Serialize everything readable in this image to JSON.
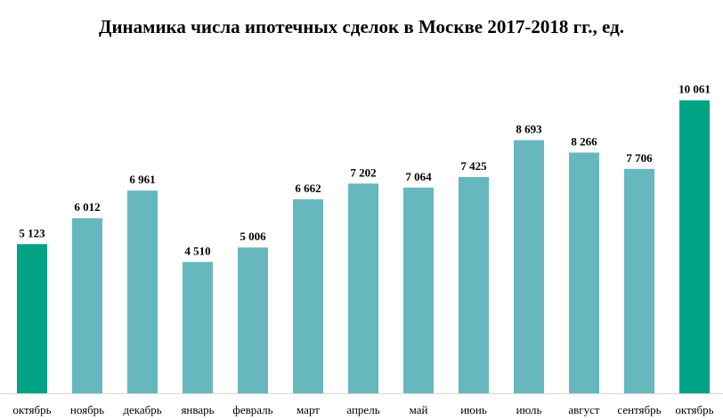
{
  "chart_data": {
    "type": "bar",
    "title": "Динамика числа ипотечных сделок в Москве 2017-2018 гг., ед.",
    "categories": [
      "октябрь",
      "ноябрь",
      "декабрь",
      "январь",
      "февраль",
      "март",
      "апрель",
      "май",
      "июнь",
      "июль",
      "август",
      "сентябрь",
      "октябрь"
    ],
    "values": [
      5123,
      6012,
      6961,
      4510,
      5006,
      6662,
      7202,
      7064,
      7425,
      8693,
      8266,
      7706,
      10061
    ],
    "value_labels": [
      "5 123",
      "6 012",
      "6 961",
      "4 510",
      "5 006",
      "6 662",
      "7 202",
      "7 064",
      "7 425",
      "8 693",
      "8 266",
      "7 706",
      "10 061"
    ],
    "highlight_indices": [
      0,
      12
    ],
    "ylim": [
      0,
      11000
    ],
    "grid": false,
    "legend": "none",
    "colors": {
      "bar": "#66B7BE",
      "highlight": "#00A383",
      "axis": "#D9D9D9"
    }
  }
}
